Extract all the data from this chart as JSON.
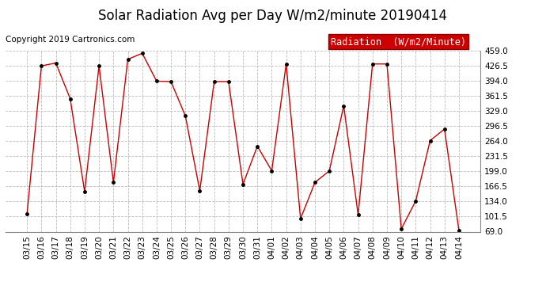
{
  "title": "Solar Radiation Avg per Day W/m2/minute 20190414",
  "copyright": "Copyright 2019 Cartronics.com",
  "legend_label": "Radiation  (W/m2/Minute)",
  "dates": [
    "03/15",
    "03/16",
    "03/17",
    "03/18",
    "03/19",
    "03/20",
    "03/21",
    "03/22",
    "03/23",
    "03/24",
    "03/25",
    "03/26",
    "03/27",
    "03/28",
    "03/29",
    "03/30",
    "03/31",
    "04/01",
    "04/02",
    "04/03",
    "04/04",
    "04/05",
    "04/06",
    "04/07",
    "04/08",
    "04/09",
    "04/10",
    "04/11",
    "04/12",
    "04/13",
    "04/14"
  ],
  "values": [
    108,
    426,
    432,
    355,
    155,
    426,
    175,
    440,
    453,
    393,
    392,
    318,
    157,
    392,
    392,
    171,
    253,
    200,
    430,
    97,
    175,
    200,
    340,
    105,
    430,
    430,
    75,
    135,
    265,
    290,
    72
  ],
  "line_color": "#cc0000",
  "marker_color": "#000000",
  "background_color": "#ffffff",
  "plot_bg_color": "#ffffff",
  "grid_color": "#bbbbbb",
  "ylim": [
    69.0,
    459.0
  ],
  "yticks": [
    69.0,
    101.5,
    134.0,
    166.5,
    199.0,
    231.5,
    264.0,
    296.5,
    329.0,
    361.5,
    394.0,
    426.5,
    459.0
  ],
  "legend_bg": "#cc0000",
  "legend_text_color": "#ffffff",
  "title_fontsize": 12,
  "copyright_fontsize": 7.5,
  "tick_fontsize": 7.5,
  "legend_fontsize": 8.5
}
